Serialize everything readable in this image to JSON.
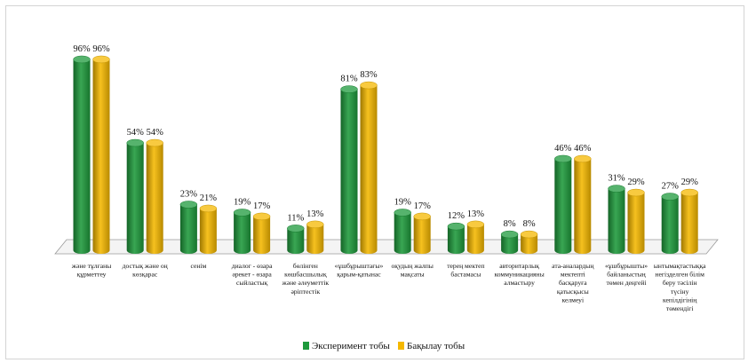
{
  "chart_data": {
    "type": "bar",
    "title": "",
    "xlabel": "",
    "ylabel": "",
    "ylim": [
      0,
      100
    ],
    "grid": false,
    "legend_position": "bottom",
    "categories": [
      [
        "және тұлғаны",
        "құрметтеу"
      ],
      [
        "достық және оң",
        "көзқарас"
      ],
      [
        "сенім"
      ],
      [
        "диалог - өзара",
        "әрекет - өзара",
        "сыйластық"
      ],
      [
        "бөлінген",
        "көшбасшылық",
        "және әлеуметтік",
        "әріптестік"
      ],
      [
        "«ұшбұрыштағы»",
        "қарым-қатынас"
      ],
      [
        "оқудың жалпы",
        "мақсаты"
      ],
      [
        "терең мектеп",
        "бастамасы"
      ],
      [
        "авторитарлық",
        "коммуникацияны",
        "алмастыру"
      ],
      [
        "ата-аналардың",
        "мектепті",
        "басқаруға",
        "қатысқысы",
        "келмеуі"
      ],
      [
        "«ұшбұрышты»",
        "байланыстың",
        "төмен деңгейі"
      ],
      [
        "ынтымақтастыққа",
        "негізделген білім",
        "беру тәсілін",
        "түсіну",
        "кепілдігінің",
        "төмендігі"
      ]
    ],
    "series": [
      {
        "name": "Эксперимент тобы",
        "color": "#1e9a3c",
        "values": [
          96,
          54,
          23,
          19,
          11,
          81,
          19,
          12,
          8,
          46,
          31,
          27
        ],
        "labels": [
          "96%",
          "54%",
          "23%",
          "19%",
          "11%",
          "81%",
          "19%",
          "12%",
          "8%",
          "46%",
          "31%",
          "27%"
        ]
      },
      {
        "name": "Бақылау тобы",
        "color": "#f5b800",
        "values": [
          96,
          54,
          21,
          17,
          13,
          83,
          17,
          13,
          8,
          46,
          29,
          29
        ],
        "labels": [
          "96%",
          "54%",
          "21%",
          "17%",
          "13%",
          "83%",
          "17%",
          "13%",
          "8%",
          "46%",
          "29%",
          "29%"
        ]
      }
    ]
  }
}
